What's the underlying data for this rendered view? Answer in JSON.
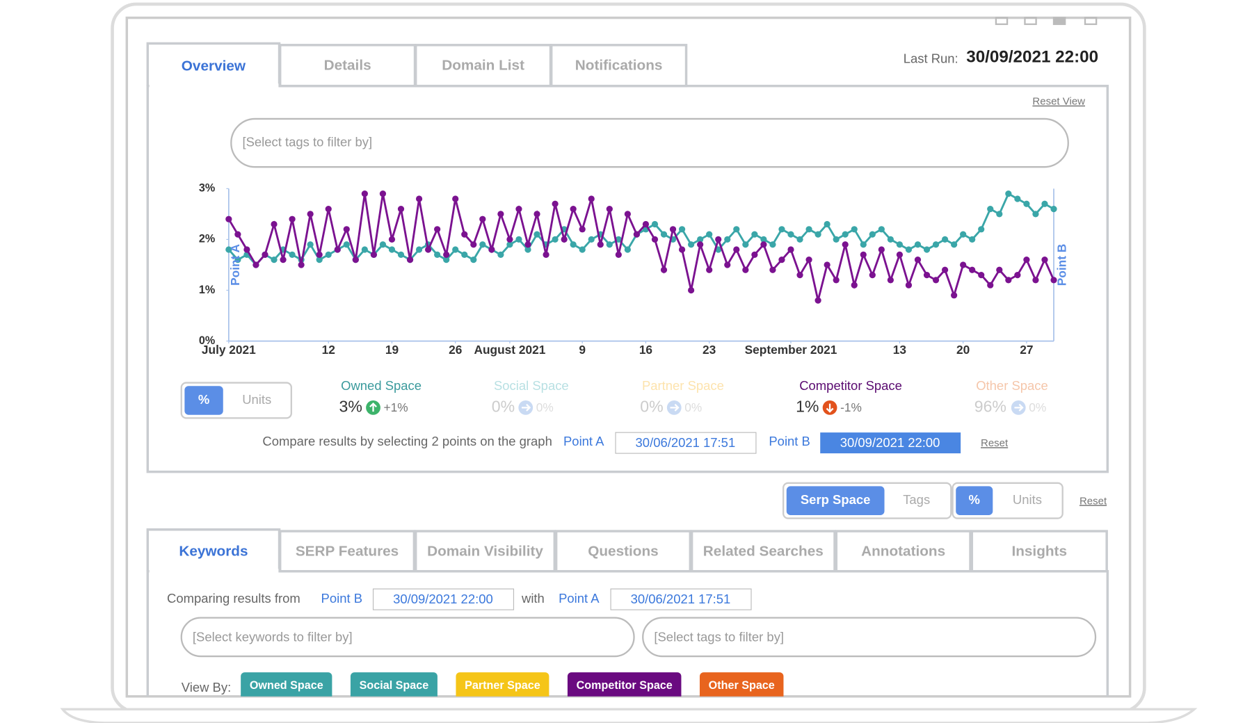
{
  "tabs": [
    "Overview",
    "Details",
    "Domain List",
    "Notifications"
  ],
  "last_run": {
    "label": "Last Run:",
    "value": "30/09/2021 22:00"
  },
  "reset_view": "Reset View",
  "tag_filter": "[Select tags to filter by]",
  "chart_data": {
    "type": "line",
    "x": [
      "2021-07-01",
      "2021-07-02",
      "2021-07-03",
      "2021-07-04",
      "2021-07-05",
      "2021-07-06",
      "2021-07-07",
      "2021-07-08",
      "2021-07-09",
      "2021-07-10",
      "2021-07-11",
      "2021-07-12",
      "2021-07-13",
      "2021-07-14",
      "2021-07-15",
      "2021-07-16",
      "2021-07-17",
      "2021-07-18",
      "2021-07-19",
      "2021-07-20",
      "2021-07-21",
      "2021-07-22",
      "2021-07-23",
      "2021-07-24",
      "2021-07-25",
      "2021-07-26",
      "2021-07-27",
      "2021-07-28",
      "2021-07-29",
      "2021-07-30",
      "2021-07-31",
      "2021-08-01",
      "2021-08-02",
      "2021-08-03",
      "2021-08-04",
      "2021-08-05",
      "2021-08-06",
      "2021-08-07",
      "2021-08-08",
      "2021-08-09",
      "2021-08-10",
      "2021-08-11",
      "2021-08-12",
      "2021-08-13",
      "2021-08-14",
      "2021-08-15",
      "2021-08-16",
      "2021-08-17",
      "2021-08-18",
      "2021-08-19",
      "2021-08-20",
      "2021-08-21",
      "2021-08-22",
      "2021-08-23",
      "2021-08-24",
      "2021-08-25",
      "2021-08-26",
      "2021-08-27",
      "2021-08-28",
      "2021-08-29",
      "2021-08-30",
      "2021-08-31",
      "2021-09-01",
      "2021-09-02",
      "2021-09-03",
      "2021-09-04",
      "2021-09-05",
      "2021-09-06",
      "2021-09-07",
      "2021-09-08",
      "2021-09-09",
      "2021-09-10",
      "2021-09-11",
      "2021-09-12",
      "2021-09-13",
      "2021-09-14",
      "2021-09-15",
      "2021-09-16",
      "2021-09-17",
      "2021-09-18",
      "2021-09-19",
      "2021-09-20",
      "2021-09-21",
      "2021-09-22",
      "2021-09-23",
      "2021-09-24",
      "2021-09-25",
      "2021-09-26",
      "2021-09-27",
      "2021-09-28",
      "2021-09-29",
      "2021-09-30"
    ],
    "series": [
      {
        "name": "Owned Space",
        "color": "#3aa6a8",
        "values": [
          1.8,
          1.6,
          1.7,
          1.5,
          1.7,
          1.6,
          1.8,
          1.7,
          1.6,
          1.9,
          1.6,
          1.7,
          1.8,
          1.9,
          1.6,
          1.8,
          1.7,
          1.9,
          1.8,
          1.7,
          1.6,
          1.8,
          1.9,
          1.7,
          1.6,
          1.8,
          1.7,
          1.6,
          1.9,
          1.8,
          1.7,
          1.9,
          2.0,
          1.8,
          2.1,
          1.9,
          2.0,
          2.2,
          1.9,
          1.8,
          2.0,
          2.1,
          1.9,
          2.0,
          1.8,
          2.1,
          2.2,
          2.3,
          2.1,
          2.0,
          2.2,
          1.9,
          2.0,
          2.1,
          1.8,
          2.0,
          2.2,
          1.9,
          2.1,
          2.0,
          1.9,
          2.2,
          2.1,
          2.0,
          2.2,
          2.1,
          2.3,
          2.0,
          2.1,
          2.2,
          1.9,
          2.1,
          2.2,
          2.0,
          1.9,
          1.8,
          1.9,
          1.8,
          1.9,
          2.0,
          1.9,
          2.1,
          2.0,
          2.2,
          2.6,
          2.5,
          2.9,
          2.8,
          2.7,
          2.5,
          2.7,
          2.6
        ]
      },
      {
        "name": "Competitor Space",
        "color": "#7b1290",
        "values": [
          2.4,
          2.1,
          1.8,
          1.5,
          1.7,
          2.3,
          1.6,
          2.4,
          1.5,
          2.5,
          1.7,
          2.6,
          1.8,
          2.2,
          1.6,
          2.9,
          1.7,
          2.9,
          2.0,
          2.6,
          1.6,
          2.8,
          1.8,
          2.2,
          1.7,
          2.8,
          2.1,
          1.9,
          2.4,
          1.8,
          2.5,
          2.0,
          2.6,
          1.9,
          2.5,
          1.7,
          2.7,
          2.0,
          2.6,
          2.2,
          2.8,
          1.9,
          2.6,
          1.7,
          2.5,
          2.1,
          2.3,
          2.0,
          1.4,
          2.2,
          1.8,
          1.0,
          1.9,
          1.4,
          2.0,
          1.5,
          1.8,
          1.4,
          1.7,
          1.9,
          1.4,
          1.6,
          1.8,
          1.3,
          1.6,
          0.8,
          1.5,
          1.2,
          1.9,
          1.1,
          1.7,
          1.3,
          1.8,
          1.2,
          1.7,
          1.1,
          1.6,
          1.3,
          1.2,
          1.4,
          0.9,
          1.5,
          1.4,
          1.3,
          1.1,
          1.4,
          1.2,
          1.3,
          1.6,
          1.2,
          1.6,
          1.2
        ]
      }
    ],
    "xlim": [
      "2021-07-01",
      "2021-09-30"
    ],
    "xticks": [
      {
        "value": "2021-07-01",
        "label": "July 2021"
      },
      {
        "value": "2021-07-12",
        "label": "12"
      },
      {
        "value": "2021-07-19",
        "label": "19"
      },
      {
        "value": "2021-07-26",
        "label": "26"
      },
      {
        "value": "2021-08-01",
        "label": "August 2021"
      },
      {
        "value": "2021-08-09",
        "label": "9"
      },
      {
        "value": "2021-08-16",
        "label": "16"
      },
      {
        "value": "2021-08-23",
        "label": "23"
      },
      {
        "value": "2021-09-01",
        "label": "September 2021"
      },
      {
        "value": "2021-09-13",
        "label": "13"
      },
      {
        "value": "2021-09-20",
        "label": "20"
      },
      {
        "value": "2021-09-27",
        "label": "27"
      }
    ],
    "ylim": [
      0,
      3
    ],
    "yticks": [
      {
        "value": 0,
        "label": "0%"
      },
      {
        "value": 1,
        "label": "1%"
      },
      {
        "value": 2,
        "label": "2%"
      },
      {
        "value": 3,
        "label": "3%"
      }
    ],
    "point_markers": [
      "Point A",
      "Point B"
    ]
  },
  "unit_toggle": [
    "%",
    "Units"
  ],
  "summary": [
    {
      "value": "3%",
      "change": "+1%"
    },
    {
      "name": "Social Space",
      "value": "0%",
      "change": "0%"
    },
    {
      "name": "Partner Space",
      "value": "0%",
      "change": "0%"
    },
    {
      "value": "1%",
      "change": "-1%"
    },
    {
      "name": "Other Space",
      "value": "96%",
      "change": "0%"
    }
  ],
  "compare": {
    "text": "Compare results by selecting 2 points on the graph",
    "point_a": "Point A",
    "date_a": "30/06/2021 17:51",
    "point_b": "Point B",
    "date_b": "30/09/2021 22:00",
    "reset": "Reset"
  },
  "view_toggle": [
    "Serp Space",
    "Tags"
  ],
  "unit_toggle_2": [
    "%",
    "Units"
  ],
  "reset_2": "Reset",
  "bottom_tabs": [
    "Keywords",
    "SERP Features",
    "Domain Visibility",
    "Questions",
    "Related Searches",
    "Annotations",
    "Insights"
  ],
  "comparing": {
    "text": "Comparing results from",
    "point_b": "Point B",
    "date_b": "30/09/2021 22:00",
    "with": "with",
    "point_a": "Point A",
    "date_a": "30/06/2021 17:51"
  },
  "keyword_filter": "[Select keywords to filter by]",
  "tag_filter_2": "[Select tags to filter by]",
  "view_by": {
    "label": "View By:",
    "options": [
      "Owned Space",
      "Social Space",
      "Partner Space",
      "Competitor Space",
      "Other Space"
    ]
  }
}
